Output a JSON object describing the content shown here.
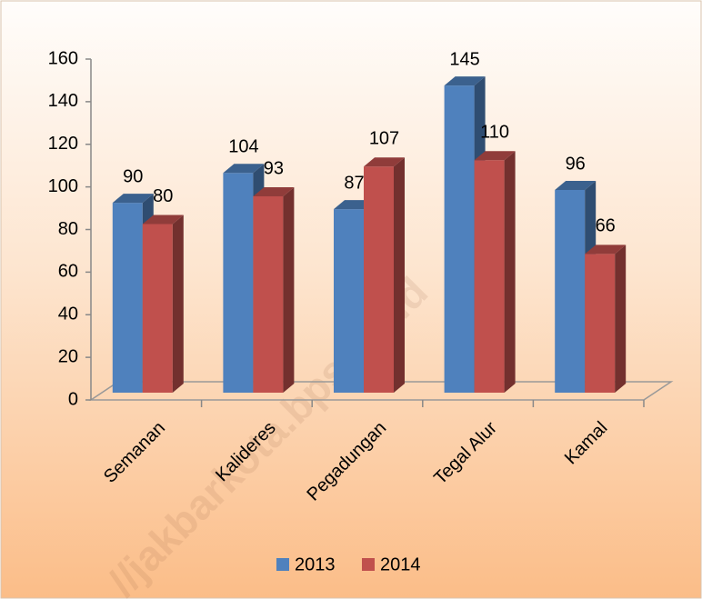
{
  "chart_data": {
    "type": "bar",
    "categories": [
      "Semanan",
      "Kalideres",
      "Pegadungan",
      "Tegal Alur",
      "Kamal"
    ],
    "series": [
      {
        "name": "2013",
        "color": "#4f81bd",
        "values": [
          90,
          104,
          87,
          145,
          96
        ]
      },
      {
        "name": "2014",
        "color": "#c0504d",
        "values": [
          80,
          93,
          107,
          110,
          66
        ]
      }
    ],
    "ylim": [
      0,
      160
    ],
    "yticks": [
      0,
      20,
      40,
      60,
      80,
      100,
      120,
      140,
      160
    ],
    "legend": "bottom",
    "watermark": "//jakbarkota.bps.go.id"
  }
}
